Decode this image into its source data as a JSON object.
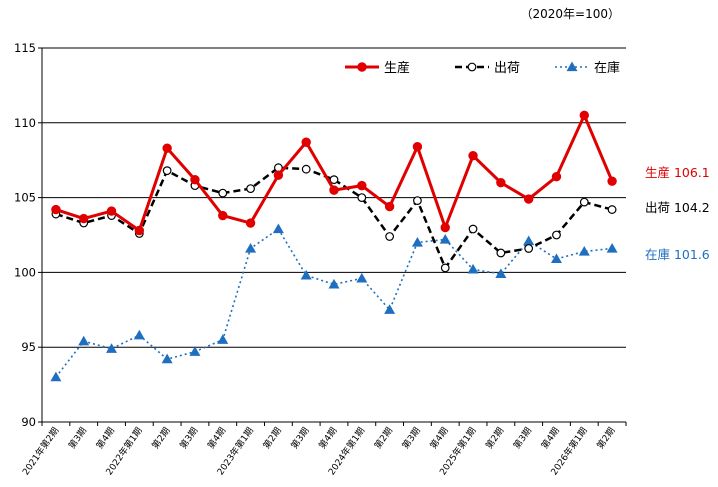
{
  "chart_data": {
    "type": "line",
    "unit_note": "（2020年=100）",
    "ylim": [
      90,
      115
    ],
    "yticks": [
      90,
      95,
      100,
      105,
      110,
      115
    ],
    "grid": "horizontal",
    "legend_position": "top-right",
    "categories": [
      "2021年第2期",
      "第3期",
      "第4期",
      "2022年第1期",
      "第2期",
      "第3期",
      "第4期",
      "2023年第1期",
      "第2期",
      "第3期",
      "第4期",
      "2024年第1期",
      "第2期",
      "第3期",
      "第4期",
      "2025年第1期",
      "第2期",
      "第3期",
      "第4期",
      "2026年第1期",
      "第2期"
    ],
    "series": [
      {
        "name": "生産",
        "color": "#e00000",
        "style": "solid-circle",
        "values": [
          104.2,
          103.6,
          104.1,
          102.8,
          108.3,
          106.2,
          103.8,
          103.3,
          106.5,
          108.7,
          105.5,
          105.8,
          104.4,
          108.4,
          103.0,
          107.8,
          106.0,
          104.9,
          106.4,
          110.5,
          106.1
        ],
        "end_label": "生産 106.1"
      },
      {
        "name": "出荷",
        "color": "#000000",
        "style": "dashed-open-circle",
        "values": [
          103.9,
          103.3,
          103.8,
          102.6,
          106.8,
          105.8,
          105.3,
          105.6,
          107.0,
          106.9,
          106.2,
          105.0,
          102.4,
          104.8,
          100.3,
          102.9,
          101.3,
          101.6,
          102.5,
          104.7,
          104.2
        ],
        "end_label": "出荷 104.2"
      },
      {
        "name": "在庫",
        "color": "#1f6fc0",
        "style": "dotted-triangle",
        "values": [
          93.0,
          95.4,
          94.9,
          95.8,
          94.2,
          94.7,
          95.5,
          101.6,
          102.9,
          99.8,
          99.2,
          99.6,
          97.5,
          102.0,
          102.2,
          100.2,
          99.9,
          102.1,
          100.9,
          101.4,
          101.6
        ],
        "end_label": "在庫 101.6"
      }
    ]
  }
}
